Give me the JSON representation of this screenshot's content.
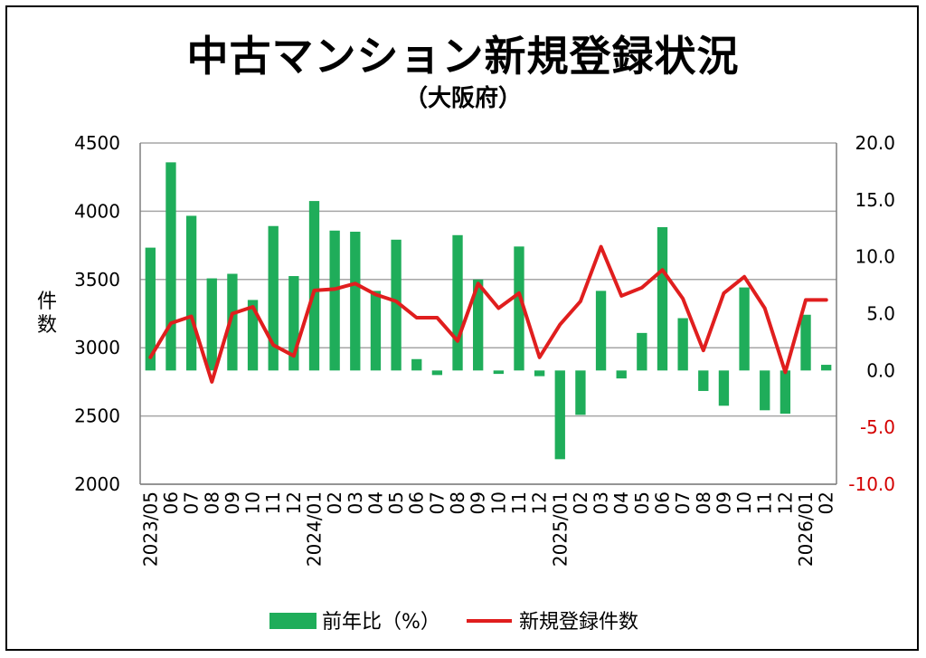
{
  "chart_data": {
    "type": "bar+line",
    "title": "中古マンション新規登録状況",
    "subtitle": "（大阪府）",
    "ylabel_left": "件数",
    "y_left_range": [
      2000,
      4500
    ],
    "y_left_ticks": [
      "4500",
      "4000",
      "3500",
      "3000",
      "2500",
      "2000"
    ],
    "y_right_range": [
      -10,
      20
    ],
    "y_right_ticks": [
      "20.0",
      "15.0",
      "10.0",
      "5.0",
      "0.0",
      "-5.0",
      "-10.0"
    ],
    "grid": true,
    "legend_position": "bottom",
    "categories": [
      "2023/05",
      "06",
      "07",
      "08",
      "09",
      "10",
      "11",
      "12",
      "2024/01",
      "02",
      "03",
      "04",
      "05",
      "06",
      "07",
      "08",
      "09",
      "10",
      "11",
      "12",
      "2025/01",
      "02",
      "03",
      "04",
      "05",
      "06",
      "07",
      "08",
      "09",
      "10",
      "11",
      "12",
      "2026/01",
      "02"
    ],
    "series": [
      {
        "name": "前年比（%）",
        "type": "bar",
        "axis": "right",
        "color": "#1fad5a",
        "values": [
          10.8,
          18.3,
          13.6,
          8.1,
          8.5,
          6.2,
          12.7,
          8.3,
          14.9,
          12.3,
          12.2,
          7.0,
          11.5,
          1.0,
          -0.4,
          11.9,
          8.0,
          -0.3,
          10.9,
          -0.5,
          -7.8,
          -3.9,
          7.0,
          -0.7,
          3.3,
          12.6,
          4.6,
          -1.8,
          -3.1,
          7.3,
          -3.5,
          -3.8,
          4.9,
          0.5
        ]
      },
      {
        "name": "新規登録件数",
        "type": "line",
        "axis": "left",
        "color": "#e01e1e",
        "values": [
          2930,
          3180,
          3230,
          2750,
          3250,
          3300,
          3020,
          2940,
          3420,
          3430,
          3470,
          3390,
          3340,
          3220,
          3220,
          3050,
          3470,
          3290,
          3400,
          2930,
          3170,
          3340,
          3740,
          3380,
          3440,
          3570,
          3360,
          2980,
          3400,
          3520,
          3290,
          2820,
          3350,
          3350
        ]
      }
    ]
  }
}
